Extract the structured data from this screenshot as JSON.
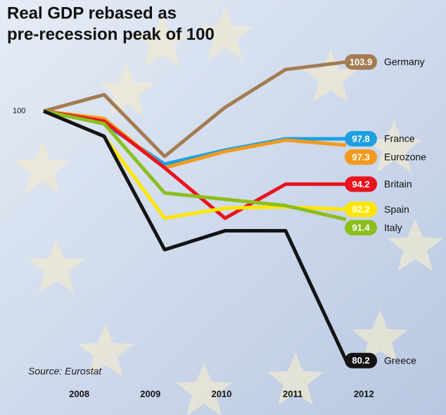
{
  "chart_data": {
    "type": "line",
    "title": [
      "Real GDP rebased as",
      "pre-recession peak of 100"
    ],
    "source": "Source: Eurostat",
    "x": [
      2007.5,
      2008.35,
      2009.2,
      2010.05,
      2010.9,
      2011.75
    ],
    "xlim": [
      2007.5,
      2011.75
    ],
    "xticks": [
      2008,
      2009,
      2010,
      2011,
      2012
    ],
    "ylim": [
      77.5,
      107.7
    ],
    "yticks": [
      100
    ],
    "series": [
      {
        "name": "Germany",
        "color": "#a47c52",
        "values": [
          100,
          101.3,
          96.4,
          100.3,
          103.3,
          103.9
        ]
      },
      {
        "name": "France",
        "color": "#1ea0e0",
        "values": [
          100,
          99.0,
          95.8,
          96.9,
          97.8,
          97.8
        ]
      },
      {
        "name": "Eurozone",
        "color": "#f39a1e",
        "values": [
          100,
          99.4,
          95.5,
          96.8,
          97.7,
          97.3
        ]
      },
      {
        "name": "Britain",
        "color": "#e8141e",
        "values": [
          100,
          99.2,
          95.5,
          91.5,
          94.2,
          94.2
        ]
      },
      {
        "name": "Spain",
        "color": "#ffe600",
        "values": [
          100,
          98.0,
          91.5,
          92.3,
          92.4,
          92.2
        ]
      },
      {
        "name": "Italy",
        "color": "#8cbe1e",
        "values": [
          100,
          99.0,
          93.5,
          93.0,
          92.5,
          91.4
        ]
      },
      {
        "name": "Greece",
        "color": "#141414",
        "values": [
          100,
          98.0,
          89.0,
          90.5,
          90.5,
          80.2
        ]
      }
    ]
  }
}
